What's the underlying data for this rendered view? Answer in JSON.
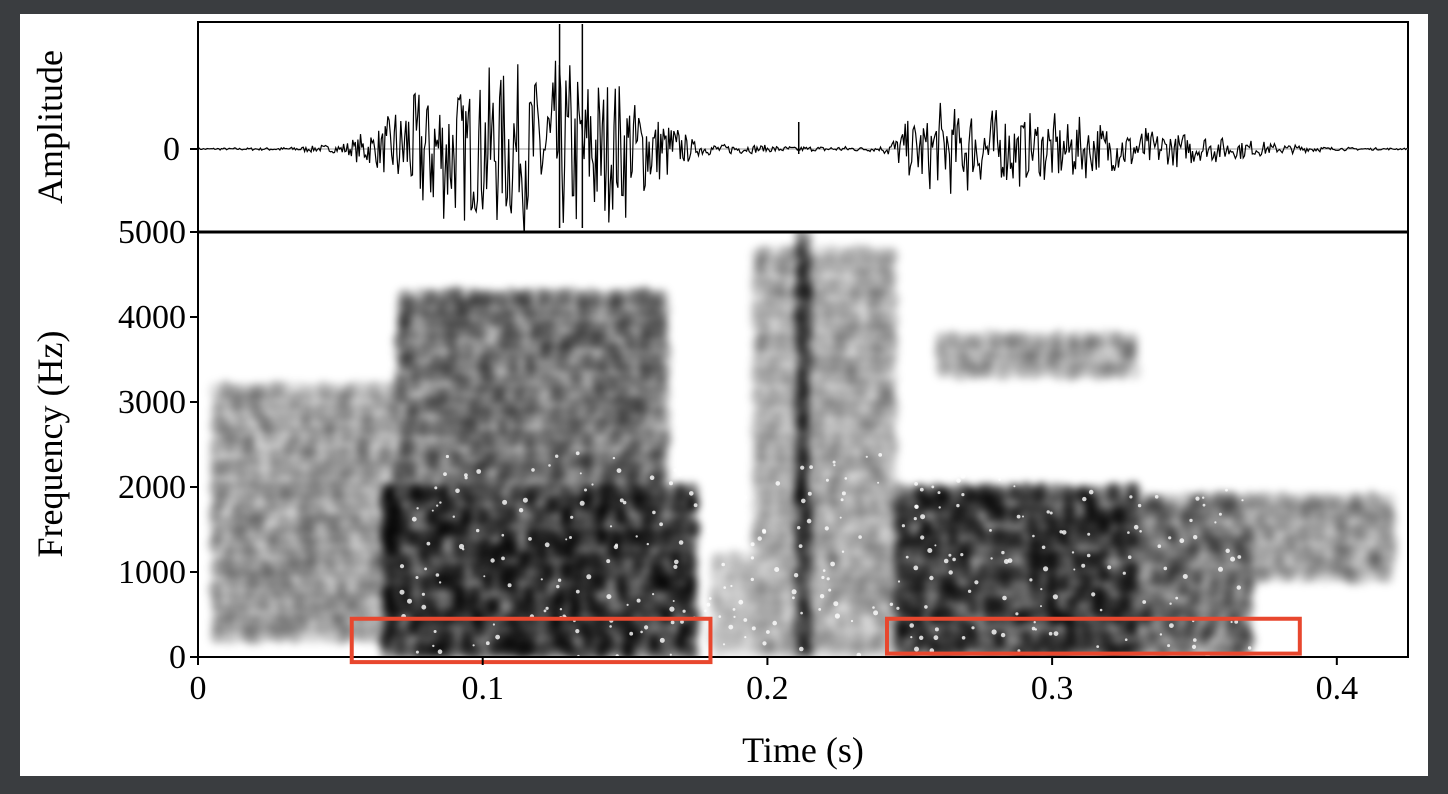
{
  "chart_data": [
    {
      "type": "line",
      "panel": "waveform",
      "ylabel": "Amplitude",
      "yticks": [
        "0"
      ],
      "xlim": [
        0,
        0.425
      ],
      "amplitude_envelope": {
        "x": [
          0.0,
          0.03,
          0.05,
          0.065,
          0.075,
          0.09,
          0.11,
          0.125,
          0.135,
          0.145,
          0.155,
          0.165,
          0.175,
          0.21,
          0.24,
          0.25,
          0.26,
          0.27,
          0.3,
          0.33,
          0.36,
          0.38,
          0.4,
          0.425
        ],
        "y": [
          0.01,
          0.02,
          0.06,
          0.3,
          0.75,
          0.85,
          0.95,
          1.0,
          1.0,
          0.85,
          0.7,
          0.35,
          0.08,
          0.03,
          0.03,
          0.35,
          0.55,
          0.5,
          0.4,
          0.25,
          0.15,
          0.06,
          0.02,
          0.01
        ]
      },
      "spike_time": 0.211
    },
    {
      "type": "heatmap",
      "panel": "spectrogram",
      "xlabel": "Time (s)",
      "ylabel": "Frequency (Hz)",
      "xlim": [
        0,
        0.425
      ],
      "ylim": [
        0,
        5000
      ],
      "xticks": [
        "0",
        "0.1",
        "0.2",
        "0.3",
        "0.4"
      ],
      "yticks": [
        "0",
        "1000",
        "2000",
        "3000",
        "4000",
        "5000"
      ],
      "energy_regions": [
        {
          "x0": 0.005,
          "x1": 0.07,
          "y0": 200,
          "y1": 3200,
          "intensity": 0.35
        },
        {
          "x0": 0.065,
          "x1": 0.175,
          "y0": 0,
          "y1": 2000,
          "intensity": 0.9
        },
        {
          "x0": 0.07,
          "x1": 0.165,
          "y0": 2000,
          "y1": 4300,
          "intensity": 0.55
        },
        {
          "x0": 0.18,
          "x1": 0.195,
          "y0": 0,
          "y1": 1200,
          "intensity": 0.2
        },
        {
          "x0": 0.21,
          "x1": 0.215,
          "y0": 0,
          "y1": 5000,
          "intensity": 0.75
        },
        {
          "x0": 0.195,
          "x1": 0.245,
          "y0": 0,
          "y1": 4800,
          "intensity": 0.3
        },
        {
          "x0": 0.245,
          "x1": 0.33,
          "y0": 0,
          "y1": 2000,
          "intensity": 0.85
        },
        {
          "x0": 0.33,
          "x1": 0.37,
          "y0": 0,
          "y1": 1900,
          "intensity": 0.55
        },
        {
          "x0": 0.37,
          "x1": 0.42,
          "y0": 900,
          "y1": 1900,
          "intensity": 0.35
        },
        {
          "x0": 0.26,
          "x1": 0.33,
          "y0": 3300,
          "y1": 3800,
          "intensity": 0.35
        }
      ],
      "highlight_boxes": [
        {
          "x0": 0.054,
          "x1": 0.18,
          "y0": -60,
          "y1": 450,
          "color": "#e8472e"
        },
        {
          "x0": 0.242,
          "x1": 0.387,
          "y0": 40,
          "y1": 450,
          "color": "#e8472e"
        }
      ]
    }
  ],
  "labels": {
    "amplitude": "Amplitude",
    "frequency": "Frequency (Hz)",
    "time": "Time (s)",
    "amp_zero": "0"
  },
  "colors": {
    "background": "#3a3d40",
    "panel": "#ffffff",
    "box": "#e8472e",
    "ink": "#000000"
  }
}
